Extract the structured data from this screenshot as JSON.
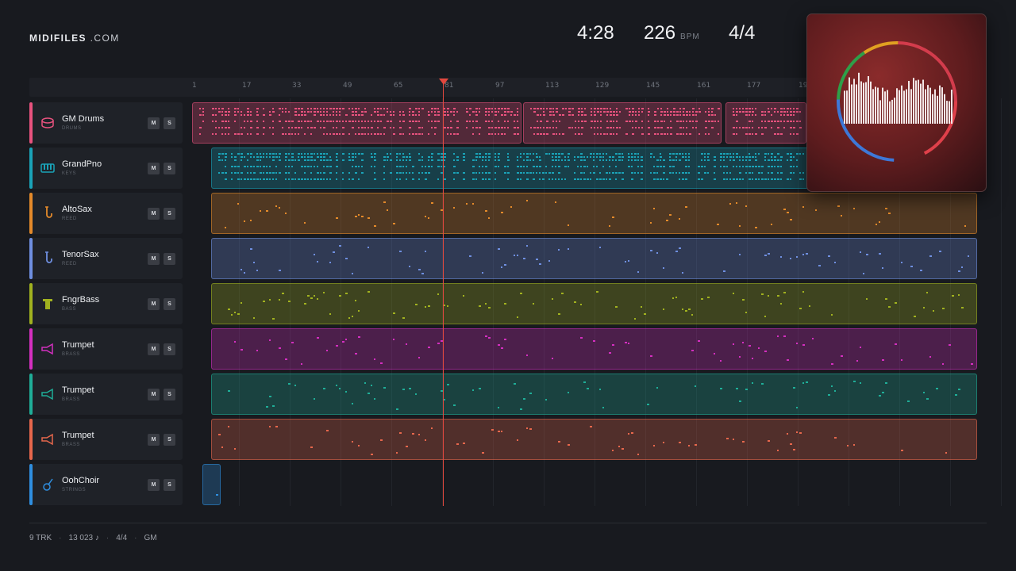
{
  "app": {
    "logo_main": "MIDIFILES",
    "logo_domain": ".COM"
  },
  "transport": {
    "time": "4:28",
    "tempo": "226",
    "tempo_unit": "BPM",
    "meter": "4/4"
  },
  "ruler": {
    "ticks": [
      "1",
      "17",
      "33",
      "49",
      "65",
      "81",
      "97",
      "113",
      "129",
      "145",
      "161",
      "177",
      "19"
    ]
  },
  "tracks": [
    {
      "name": "GM Drums",
      "category": "DRUMS",
      "color": "#e8527e",
      "icon": "drum-icon",
      "mute": "M",
      "solo": "S"
    },
    {
      "name": "GrandPno",
      "category": "KEYS",
      "color": "#1aa3b8",
      "icon": "piano-icon",
      "mute": "M",
      "solo": "S"
    },
    {
      "name": "AltoSax",
      "category": "REED",
      "color": "#e48a2a",
      "icon": "sax-icon",
      "mute": "M",
      "solo": "S"
    },
    {
      "name": "TenorSax",
      "category": "REED",
      "color": "#6f8fe0",
      "icon": "sax-icon",
      "mute": "M",
      "solo": "S"
    },
    {
      "name": "FngrBass",
      "category": "BASS",
      "color": "#a1b21f",
      "icon": "bass-icon",
      "mute": "M",
      "solo": "S"
    },
    {
      "name": "Trumpet",
      "category": "BRASS",
      "color": "#d42fc0",
      "icon": "trumpet-icon",
      "mute": "M",
      "solo": "S"
    },
    {
      "name": "Trumpet",
      "category": "BRASS",
      "color": "#1fae98",
      "icon": "trumpet-icon",
      "mute": "M",
      "solo": "S"
    },
    {
      "name": "Trumpet",
      "category": "BRASS",
      "color": "#e7674c",
      "icon": "trumpet-icon",
      "mute": "M",
      "solo": "S"
    },
    {
      "name": "OohChoir",
      "category": "STRINGS",
      "color": "#2f8fe0",
      "icon": "guitar-icon",
      "mute": "M",
      "solo": "S"
    }
  ],
  "footer": {
    "tracks": "9 TRK",
    "notes": "13 023 ♪",
    "meter": "4/4",
    "standard": "GM"
  }
}
